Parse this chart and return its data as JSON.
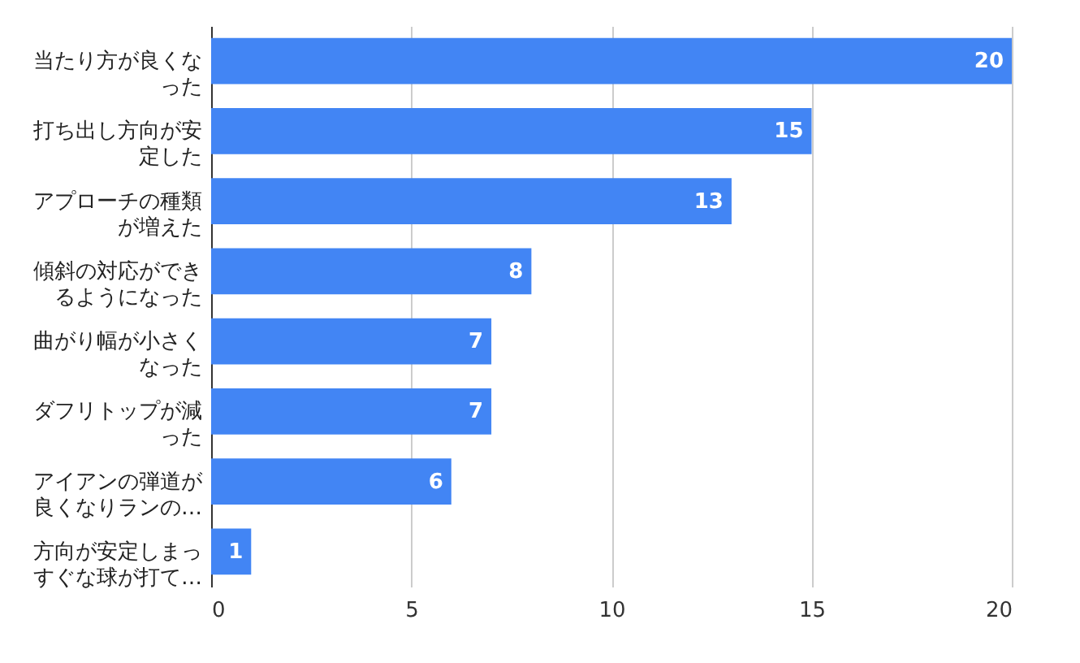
{
  "chart_data": {
    "type": "bar",
    "orientation": "horizontal",
    "categories": [
      "当たり方が良くなった",
      "打ち出し方向が安定した",
      "アプローチの種類が増えた",
      "傾斜の対応ができるようになった",
      "曲がり幅が小さくなった",
      "ダフリトップが減った",
      "アイアンの弾道が良くなりランの…",
      "方向が安定しまっすぐな球が打て…"
    ],
    "values": [
      20,
      15,
      13,
      8,
      7,
      7,
      6,
      1
    ],
    "color": "#4285f4",
    "xlim": [
      0,
      20
    ],
    "xticks": [
      0,
      5,
      10,
      15,
      20
    ],
    "grid": "x",
    "data_labels": true
  }
}
